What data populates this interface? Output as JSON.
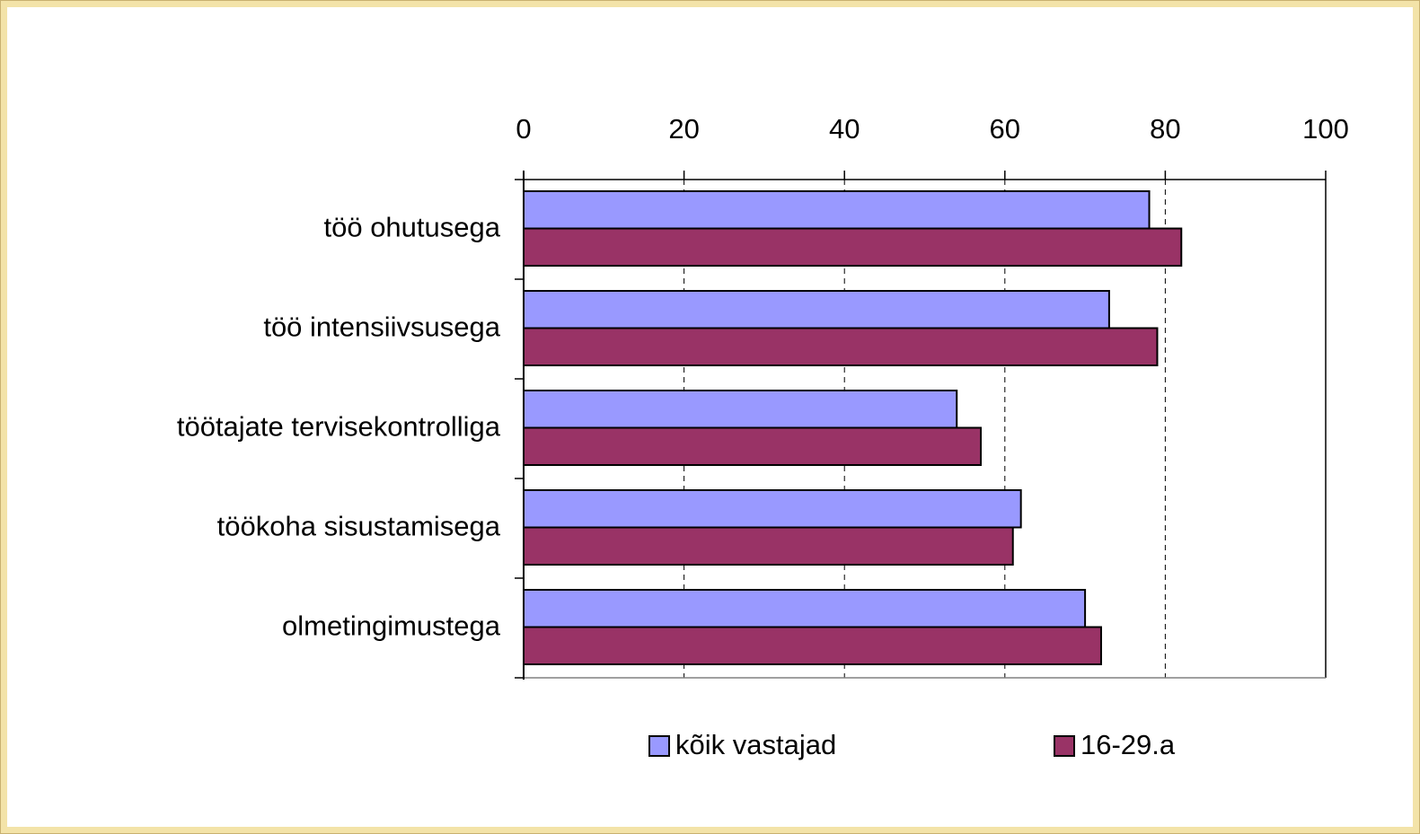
{
  "chart_data": {
    "type": "hbar",
    "categories": [
      "töö ohutusega",
      "töö intensiivsusega",
      "töötajate tervisekontrolliga",
      "töökoha sisustamisega",
      "olmetingimustega"
    ],
    "series": [
      {
        "name": "kõik vastajad",
        "color": "#9999ff",
        "values": [
          78,
          73,
          54,
          62,
          70
        ]
      },
      {
        "name": "16-29.a",
        "color": "#993366",
        "values": [
          82,
          79,
          57,
          61,
          72
        ]
      }
    ],
    "xlim": [
      0,
      100
    ],
    "xticks": [
      0,
      20,
      40,
      60,
      80,
      100
    ],
    "grid": true,
    "legend": "bottom"
  }
}
